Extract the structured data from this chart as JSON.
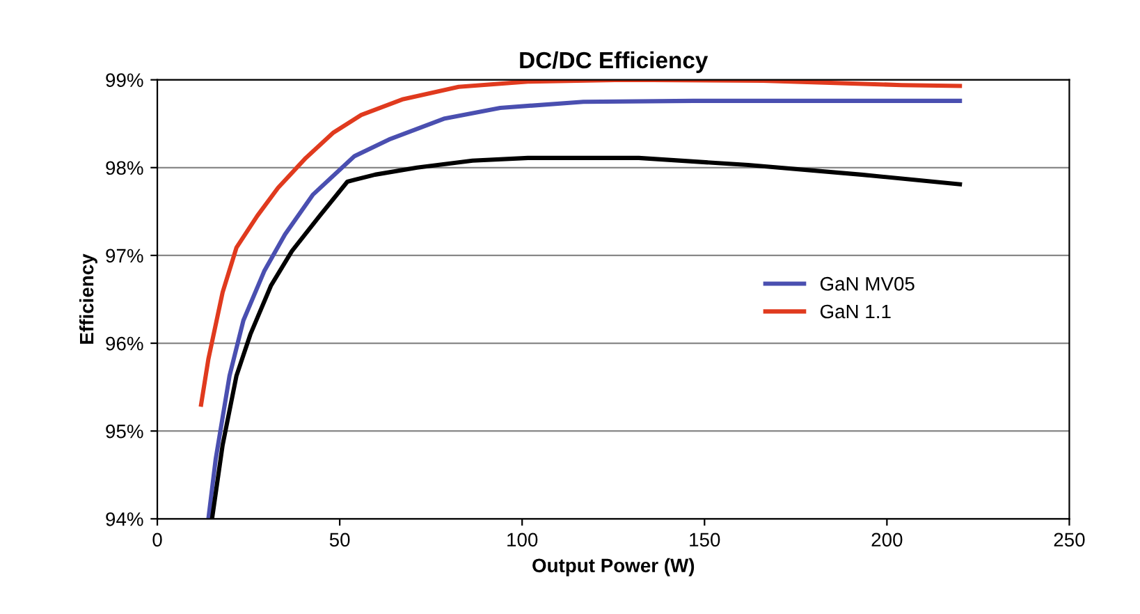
{
  "chart_data": {
    "type": "line",
    "title": "DC/DC Efficiency",
    "xlabel": "Output Power (W)",
    "ylabel": "Efficiency",
    "xlim": [
      0,
      250
    ],
    "xticks": [
      0,
      50,
      100,
      150,
      200,
      250
    ],
    "ylim": [
      94,
      99
    ],
    "yticks": [
      {
        "value": 94,
        "label": "94%"
      },
      {
        "value": 95,
        "label": "95%"
      },
      {
        "value": 96,
        "label": "96%"
      },
      {
        "value": 97,
        "label": "97%"
      },
      {
        "value": 98,
        "label": "98%"
      },
      {
        "value": 99,
        "label": "99%"
      }
    ],
    "grid": "y",
    "legend": "right",
    "marker": "none",
    "series": [
      {
        "name": "GaN MV05",
        "color": "#4a4fb0",
        "x": [
          14,
          16,
          19.8,
          23.6,
          29.3,
          35,
          42.6,
          54,
          63.5,
          78.8,
          94,
          116.8,
          147,
          220
        ],
        "values": [
          94,
          94.68,
          95.63,
          96.26,
          96.82,
          97.24,
          97.69,
          98.13,
          98.32,
          98.56,
          98.68,
          98.75,
          98.76,
          98.76
        ]
      },
      {
        "color": "#000000",
        "x": [
          15,
          17.9,
          21.7,
          25.5,
          31.2,
          36.9,
          44.5,
          52.1,
          59.7,
          71.2,
          86.4,
          101.6,
          132,
          162,
          193,
          220
        ],
        "values": [
          94,
          94.84,
          95.63,
          96.1,
          96.66,
          97.05,
          97.45,
          97.84,
          97.92,
          98.0,
          98.08,
          98.11,
          98.11,
          98.03,
          97.92,
          97.81
        ]
      },
      {
        "name": "GaN 1.1",
        "color": "#e03a1e",
        "x": [
          12,
          14,
          17.9,
          21.7,
          27.4,
          33.1,
          40.7,
          48.3,
          55.9,
          67.4,
          82.6,
          101.6,
          128,
          166,
          204,
          220
        ],
        "values": [
          95.3,
          95.82,
          96.58,
          97.09,
          97.45,
          97.77,
          98.11,
          98.4,
          98.6,
          98.78,
          98.92,
          98.98,
          99.0,
          98.99,
          98.94,
          98.93
        ]
      }
    ]
  }
}
